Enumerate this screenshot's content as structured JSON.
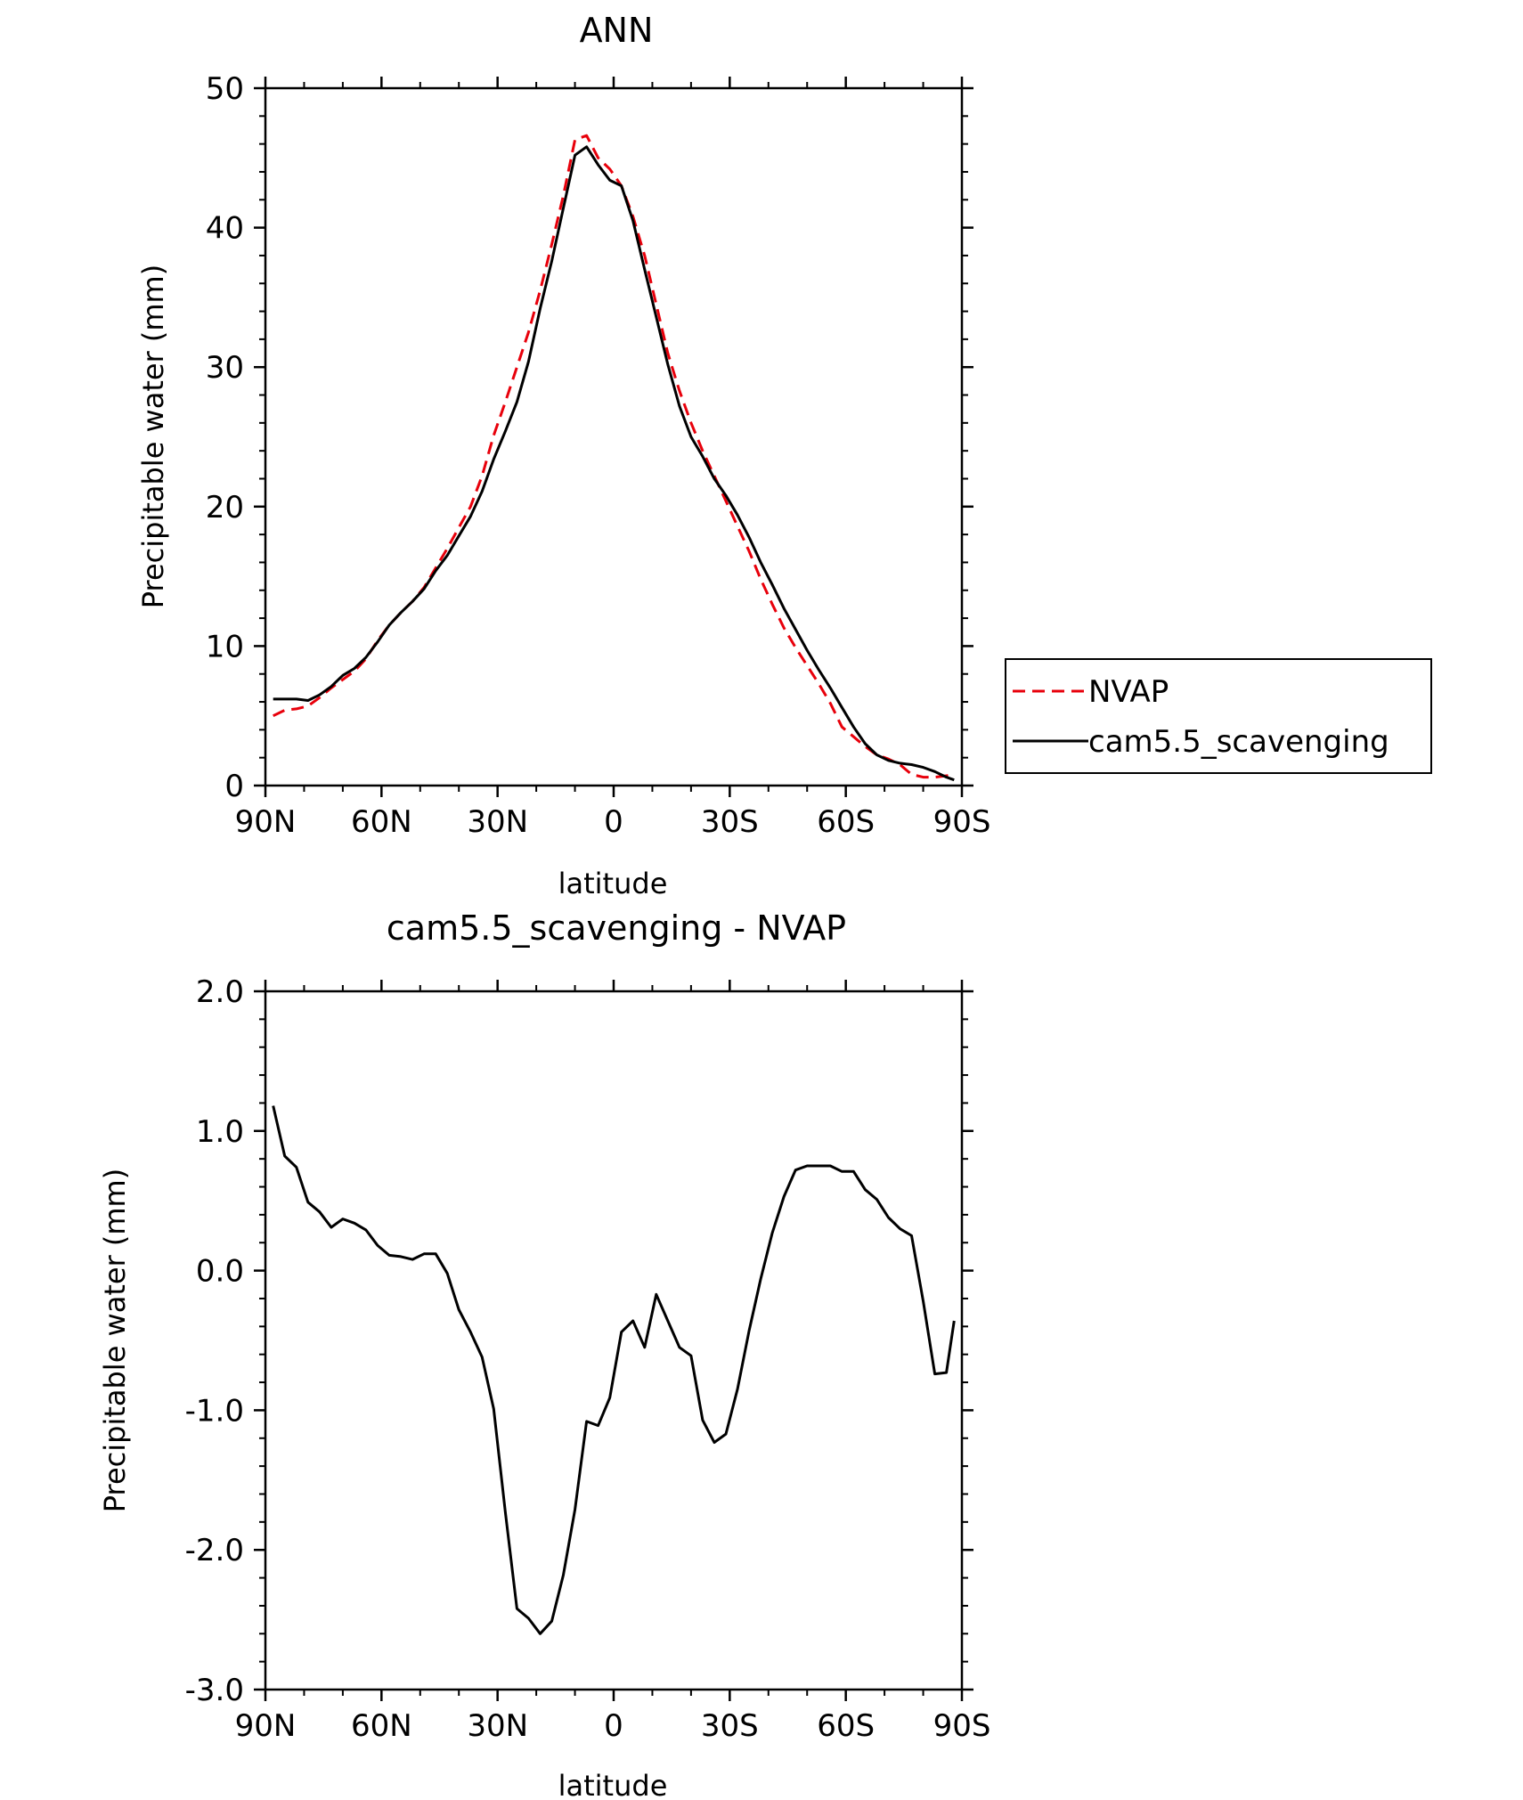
{
  "chart_data": [
    {
      "type": "line",
      "title": "ANN",
      "xlabel": "latitude",
      "ylabel": "Precipitable water (mm)",
      "xlim": [
        -90,
        90
      ],
      "ylim": [
        0,
        50
      ],
      "xticks": [
        -90,
        -60,
        -30,
        0,
        30,
        60,
        90
      ],
      "xtick_labels": [
        "90N",
        "60N",
        "30N",
        "0",
        "30S",
        "60S",
        "90S"
      ],
      "yticks": [
        0,
        10,
        20,
        30,
        40,
        50
      ],
      "ytick_labels": [
        "0",
        "10",
        "20",
        "30",
        "40",
        "50"
      ],
      "grid": false,
      "legend": {
        "placement": "right",
        "entries": [
          "NVAP",
          "cam5.5_scavenging"
        ]
      },
      "series": [
        {
          "name": "NVAP",
          "color": "#e8000b",
          "style": "dashed",
          "x": [
            -88,
            -85,
            -82,
            -79,
            -76,
            -73,
            -70,
            -67,
            -64,
            -61,
            -58,
            -55,
            -52,
            -49,
            -46,
            -43,
            -40,
            -37,
            -34,
            -31,
            -28,
            -25,
            -22,
            -19,
            -16,
            -13,
            -10,
            -7,
            -4,
            -1,
            2,
            5,
            8,
            11,
            14,
            17,
            20,
            23,
            26,
            29,
            32,
            35,
            38,
            41,
            44,
            47,
            50,
            53,
            56,
            59,
            62,
            65,
            68,
            71,
            74,
            77,
            80,
            83,
            86,
            88
          ],
          "y": [
            5.0,
            5.4,
            5.5,
            5.7,
            6.3,
            7.0,
            7.6,
            8.2,
            9.1,
            10.4,
            11.5,
            12.4,
            13.2,
            14.2,
            15.6,
            17.0,
            18.5,
            20.0,
            22.2,
            25.1,
            27.5,
            30.0,
            32.5,
            35.5,
            38.8,
            42.3,
            46.3,
            46.6,
            45.0,
            44.2,
            43.0,
            40.8,
            38.0,
            34.5,
            31.0,
            28.3,
            26.0,
            24.0,
            22.2,
            20.4,
            18.6,
            16.8,
            14.8,
            13.0,
            11.3,
            9.9,
            8.6,
            7.3,
            5.9,
            4.2,
            3.5,
            2.8,
            2.2,
            1.9,
            1.5,
            0.8,
            0.6,
            0.6,
            0.7,
            0.8
          ]
        },
        {
          "name": "cam5.5_scavenging",
          "color": "#000000",
          "style": "solid",
          "x": [
            -88,
            -85,
            -82,
            -79,
            -76,
            -73,
            -70,
            -67,
            -64,
            -61,
            -58,
            -55,
            -52,
            -49,
            -46,
            -43,
            -40,
            -37,
            -34,
            -31,
            -28,
            -25,
            -22,
            -19,
            -16,
            -13,
            -10,
            -7,
            -4,
            -1,
            2,
            5,
            8,
            11,
            14,
            17,
            20,
            23,
            26,
            29,
            32,
            35,
            38,
            41,
            44,
            47,
            50,
            53,
            56,
            59,
            62,
            65,
            68,
            71,
            74,
            77,
            80,
            83,
            86,
            88
          ],
          "y": [
            6.2,
            6.2,
            6.2,
            6.1,
            6.5,
            7.1,
            7.9,
            8.4,
            9.2,
            10.3,
            11.5,
            12.4,
            13.2,
            14.1,
            15.4,
            16.5,
            17.9,
            19.3,
            21.1,
            23.4,
            25.4,
            27.5,
            30.4,
            34.2,
            37.6,
            41.4,
            45.2,
            45.8,
            44.5,
            43.4,
            43.0,
            40.5,
            37.0,
            33.6,
            30.2,
            27.2,
            25.0,
            23.6,
            22.0,
            20.8,
            19.4,
            17.8,
            16.0,
            14.4,
            12.7,
            11.2,
            9.7,
            8.3,
            7.0,
            5.6,
            4.2,
            3.0,
            2.2,
            1.8,
            1.6,
            1.5,
            1.3,
            1.0,
            0.6,
            0.4
          ]
        }
      ]
    },
    {
      "type": "line",
      "title": "cam5.5_scavenging - NVAP",
      "xlabel": "latitude",
      "ylabel": "Precipitable water (mm)",
      "xlim": [
        -90,
        90
      ],
      "ylim": [
        -3.0,
        2.0
      ],
      "xticks": [
        -90,
        -60,
        -30,
        0,
        30,
        60,
        90
      ],
      "xtick_labels": [
        "90N",
        "60N",
        "30N",
        "0",
        "30S",
        "60S",
        "90S"
      ],
      "yticks": [
        -3.0,
        -2.0,
        -1.0,
        0.0,
        1.0,
        2.0
      ],
      "ytick_labels": [
        "-3.0",
        "-2.0",
        "-1.0",
        "0.0",
        "1.0",
        "2.0"
      ],
      "grid": false,
      "series": [
        {
          "color": "#000000",
          "style": "solid",
          "x": [
            -88,
            -85,
            -82,
            -79,
            -76,
            -73,
            -70,
            -67,
            -64,
            -61,
            -58,
            -55,
            -52,
            -49,
            -46,
            -43,
            -40,
            -37,
            -34,
            -31,
            -28,
            -25,
            -22,
            -19,
            -16,
            -13,
            -10,
            -7,
            -4,
            -1,
            2,
            5,
            8,
            11,
            14,
            17,
            20,
            23,
            26,
            29,
            32,
            35,
            38,
            41,
            44,
            47,
            50,
            53,
            56,
            59,
            62,
            65,
            68,
            71,
            74,
            77,
            80,
            83,
            86,
            88
          ],
          "y": [
            1.18,
            0.82,
            0.74,
            0.49,
            0.42,
            0.31,
            0.37,
            0.34,
            0.29,
            0.18,
            0.11,
            0.1,
            0.08,
            0.12,
            0.12,
            -0.02,
            -0.28,
            -0.44,
            -0.62,
            -0.99,
            -1.73,
            -2.42,
            -2.49,
            -2.6,
            -2.51,
            -2.18,
            -1.71,
            -1.08,
            -1.11,
            -0.91,
            -0.44,
            -0.36,
            -0.55,
            -0.17,
            -0.36,
            -0.55,
            -0.61,
            -1.07,
            -1.23,
            -1.17,
            -0.85,
            -0.43,
            -0.06,
            0.27,
            0.53,
            0.72,
            0.75,
            0.75,
            0.75,
            0.71,
            0.71,
            0.58,
            0.51,
            0.38,
            0.3,
            0.25,
            -0.22,
            -0.74,
            -0.73,
            -0.36
          ]
        }
      ]
    }
  ]
}
